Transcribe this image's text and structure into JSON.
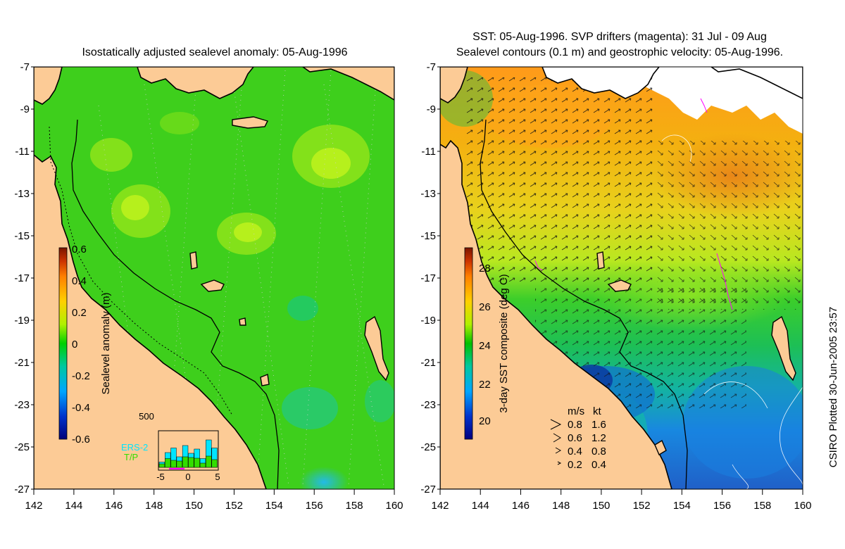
{
  "left_map": {
    "title": "Isostatically adjusted sealevel anomaly: 05-Aug-1996",
    "colorbar": {
      "label": "Sealevel anomaly (m)",
      "ticks": [
        "0.6",
        "0.4",
        "0.2",
        "0",
        "-0.2",
        "-0.4",
        "-0.6"
      ],
      "colors": [
        "#00007a",
        "#0033cc",
        "#00a6ff",
        "#00c8a0",
        "#00d000",
        "#b0f000",
        "#ffd000",
        "#ff8000",
        "#cc3300",
        "#7a1500"
      ]
    },
    "inset": {
      "ymax_label": "500",
      "x_ticks": [
        "-5",
        "0",
        "5"
      ],
      "legend": [
        {
          "label": "ERS-2",
          "color": "#00e5ff"
        },
        {
          "label": "T/P",
          "color": "#33dd00"
        }
      ],
      "ers2": [
        0.15,
        0.42,
        0.55,
        0.3,
        0.62,
        0.4,
        0.52,
        0.25,
        0.78,
        0.55
      ],
      "tp": [
        0.1,
        0.25,
        0.2,
        0.18,
        0.3,
        0.28,
        0.26,
        0.12,
        0.32,
        0.22
      ]
    }
  },
  "right_map": {
    "title_line1": "SST: 05-Aug-1996. SVP drifters (magenta): 31 Jul - 09 Aug",
    "title_line2": "Sealevel contours (0.1 m) and geostrophic velocity: 05-Aug-1996.",
    "colorbar": {
      "label": "3-day SST composite (deg C)",
      "ticks": [
        "28",
        "26",
        "24",
        "22",
        "20"
      ],
      "colors": [
        "#000080",
        "#0033cc",
        "#00a6ff",
        "#00c8a0",
        "#00c000",
        "#b0f000",
        "#ffd000",
        "#ff8000",
        "#cc3300",
        "#7a1500"
      ]
    },
    "velocity_legend": {
      "header_ms": "m/s",
      "header_kt": "kt",
      "rows": [
        {
          "ms": "0.8",
          "kt": "1.6"
        },
        {
          "ms": "0.6",
          "kt": "1.2"
        },
        {
          "ms": "0.4",
          "kt": "0.8"
        },
        {
          "ms": "0.2",
          "kt": "0.4"
        }
      ]
    }
  },
  "axes": {
    "lon_ticks": [
      "142",
      "144",
      "146",
      "148",
      "150",
      "152",
      "154",
      "156",
      "158",
      "160"
    ],
    "lat_ticks": [
      "-7",
      "-9",
      "-11",
      "-13",
      "-15",
      "-17",
      "-19",
      "-21",
      "-23",
      "-25",
      "-27"
    ]
  },
  "credit": "CSIRO Plotted 30-Jun-2005 23:57",
  "colors": {
    "land": "#fccb96",
    "ocean_sla": "#3ecf1c",
    "coast": "#000000"
  }
}
